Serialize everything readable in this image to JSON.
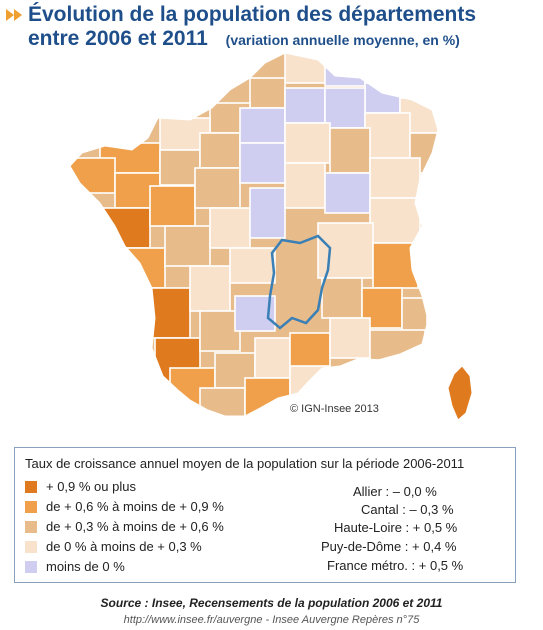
{
  "title": {
    "line1": "Évolution de la population des départements",
    "line2": "entre 2006 et 2011",
    "subtitle": "(variation annuelle moyenne, en %)"
  },
  "copyright": "IGN-Insee 2013",
  "legend": {
    "title": "Taux de croissance annuel moyen de la population sur la période 2006-2011",
    "classes": [
      {
        "label": "+ 0,9 % ou plus",
        "color": "#e07a1e"
      },
      {
        "label": "de + 0,6 % à moins de + 0,9 %",
        "color": "#f0a04a"
      },
      {
        "label": "de + 0,3 % à moins de + 0,6 %",
        "color": "#e8bb8a"
      },
      {
        "label": "de 0 % à moins de + 0,3 %",
        "color": "#f8e2cc"
      },
      {
        "label": "moins de 0 %",
        "color": "#cfcdf0"
      }
    ]
  },
  "stats": [
    {
      "name": "Allier :",
      "value": "– 0,0 %"
    },
    {
      "name": "Cantal :",
      "value": "– 0,3 %"
    },
    {
      "name": "Haute-Loire :",
      "value": "+ 0,5 %"
    },
    {
      "name": "Puy-de-Dôme :",
      "value": "+ 0,4 %"
    },
    {
      "name": "France métro. :",
      "value": "+ 0,5 %"
    }
  ],
  "source": "Source : Insee, Recensements de la population 2006 et 2011",
  "footer_url": "http://www.insee.fr/auvergne - Insee Auvergne Repères n°75",
  "colors": {
    "title": "#1f4f8a",
    "border": "#ffffff",
    "region_outline": "#3a7fb5"
  }
}
